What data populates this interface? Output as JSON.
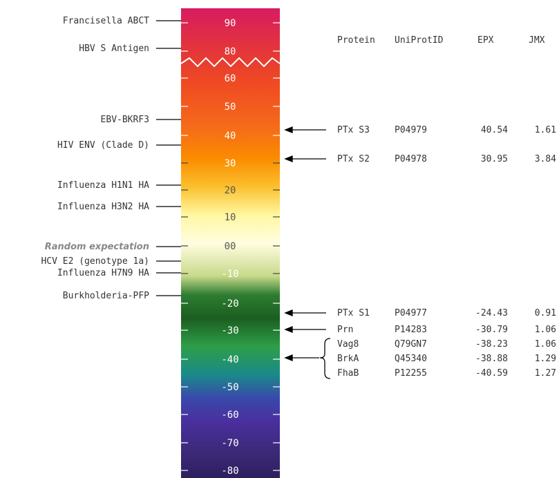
{
  "scale": {
    "ticks": [
      "90",
      "80",
      "60",
      "50",
      "40",
      "30",
      "20",
      "10",
      "00",
      "-10",
      "-20",
      "-30",
      "-40",
      "-50",
      "-60",
      "-70",
      "-80"
    ],
    "gradient": [
      "#d81b60",
      "#e53935",
      "#ef4a23",
      "#f56a1a",
      "#fb8c00",
      "#fbc02d",
      "#fff7a0",
      "#fffde0",
      "#c8d98a",
      "#2e7d32",
      "#1b5e20",
      "#2e9e47",
      "#1a8a8a",
      "#3949ab",
      "#4a2f9e",
      "#3d2a7a",
      "#2e1f5e"
    ]
  },
  "left_labels": [
    {
      "text": "Francisella ABCT",
      "italic": false
    },
    {
      "text": "HBV S Antigen",
      "italic": false
    },
    {
      "text": "EBV-BKRF3",
      "italic": false
    },
    {
      "text": "HIV ENV (Clade D)",
      "italic": false
    },
    {
      "text": "Influenza H1N1 HA",
      "italic": false
    },
    {
      "text": "Influenza H3N2 HA",
      "italic": false
    },
    {
      "text": "Random expectation",
      "italic": true
    },
    {
      "text": "HCV E2 (genotype 1a)",
      "italic": false
    },
    {
      "text": "Influenza H7N9 HA",
      "italic": false
    },
    {
      "text": "Burkholderia-PFP",
      "italic": false
    }
  ],
  "table": {
    "headers": [
      "Protein",
      "UniProtID",
      "EPX",
      "JMX"
    ],
    "rows": [
      [
        "PTx S3",
        "P04979",
        "40.54",
        "1.61"
      ],
      [
        "PTx S2",
        "P04978",
        "30.95",
        "3.84"
      ],
      [
        "PTx S1",
        "P04977",
        "-24.43",
        "0.91"
      ],
      [
        "Prn",
        "P14283",
        "-30.79",
        "1.06"
      ],
      [
        "Vag8",
        "Q79GN7",
        "-38.23",
        "1.06"
      ],
      [
        "BrkA",
        "Q45340",
        "-38.88",
        "1.29"
      ],
      [
        "FhaB",
        "P12255",
        "-40.59",
        "1.27"
      ]
    ]
  }
}
